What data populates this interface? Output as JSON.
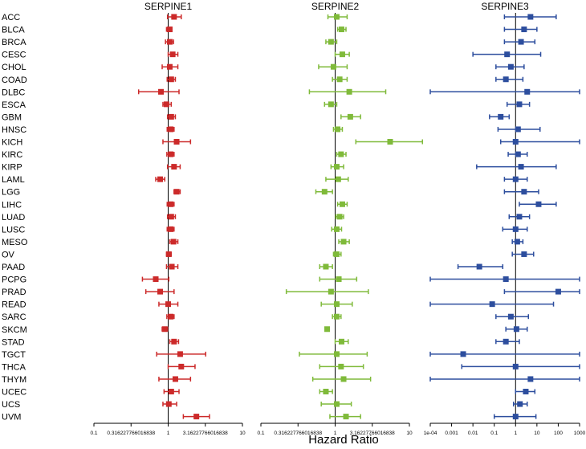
{
  "chart_data": {
    "type": "forest",
    "xlabel": "Hazard Ratio",
    "cancer_types": [
      "ACC",
      "BLCA",
      "BRCA",
      "CESC",
      "CHOL",
      "COAD",
      "DLBC",
      "ESCA",
      "GBM",
      "HNSC",
      "KICH",
      "KIRC",
      "KIRP",
      "LAML",
      "LGG",
      "LIHC",
      "LUAD",
      "LUSC",
      "MESO",
      "OV",
      "PAAD",
      "PCPG",
      "PRAD",
      "READ",
      "SARC",
      "SKCM",
      "STAD",
      "TGCT",
      "THCA",
      "THYM",
      "UCEC",
      "UCS",
      "UVM"
    ],
    "panels": [
      {
        "title": "SERPINE1",
        "color": "#cc2a2a",
        "scale": "log10",
        "xlim": [
          0.1,
          10
        ],
        "ticks": [
          0.1,
          0.316227766016838,
          1,
          3.16227766016838,
          10
        ],
        "tick_labels": [
          "0.1",
          "0.316227766016838",
          "1",
          "3.16227766016838",
          "10"
        ],
        "hr": [
          1.2,
          1.05,
          1.05,
          1.15,
          1.05,
          1.1,
          0.8,
          0.95,
          1.1,
          1.08,
          1.3,
          1.08,
          1.2,
          0.78,
          1.3,
          1.08,
          1.1,
          1.08,
          1.18,
          1.02,
          1.12,
          0.68,
          0.78,
          1.0,
          1.08,
          0.9,
          1.2,
          1.45,
          1.5,
          1.25,
          1.1,
          1.02,
          2.4
        ],
        "lower": [
          0.98,
          0.95,
          0.92,
          1.0,
          0.83,
          0.97,
          0.4,
          0.85,
          0.98,
          0.97,
          0.85,
          0.96,
          0.98,
          0.68,
          1.2,
          0.97,
          0.98,
          0.97,
          1.05,
          0.95,
          0.95,
          0.45,
          0.5,
          0.75,
          0.96,
          0.83,
          1.05,
          0.7,
          1.0,
          0.75,
          0.88,
          0.85,
          1.6
        ],
        "upper": [
          1.5,
          1.12,
          1.18,
          1.35,
          1.35,
          1.25,
          1.4,
          1.1,
          1.25,
          1.2,
          2.0,
          1.2,
          1.45,
          0.9,
          1.45,
          1.2,
          1.25,
          1.2,
          1.35,
          1.1,
          1.35,
          1.02,
          1.2,
          1.35,
          1.2,
          0.98,
          1.38,
          3.2,
          2.3,
          2.0,
          1.4,
          1.3,
          3.6
        ]
      },
      {
        "title": "SERPINE2",
        "color": "#7fba3a",
        "scale": "log10",
        "xlim": [
          0.1,
          10
        ],
        "ticks": [
          0.1,
          0.316227766016838,
          1,
          3.16227766016838,
          10
        ],
        "tick_labels": [
          "0.1",
          "0.316227766016838",
          "1",
          "3.16227766016838",
          "10"
        ],
        "hr": [
          1.05,
          1.22,
          0.88,
          1.25,
          0.95,
          1.15,
          1.55,
          0.88,
          1.6,
          1.08,
          5.5,
          1.2,
          1.05,
          1.1,
          0.72,
          1.25,
          1.15,
          1.05,
          1.3,
          1.05,
          0.75,
          1.12,
          0.88,
          1.05,
          1.05,
          0.78,
          1.22,
          1.05,
          1.2,
          1.3,
          0.75,
          1.05,
          1.4
        ],
        "lower": [
          0.8,
          1.08,
          0.75,
          1.0,
          0.6,
          0.92,
          0.45,
          0.72,
          1.2,
          0.95,
          1.9,
          1.05,
          0.88,
          0.75,
          0.55,
          1.08,
          1.02,
          0.9,
          1.12,
          0.95,
          0.62,
          0.62,
          0.22,
          0.65,
          0.92,
          0.74,
          1.0,
          0.33,
          0.62,
          0.5,
          0.62,
          0.65,
          0.85
        ],
        "upper": [
          1.45,
          1.4,
          1.05,
          1.55,
          1.45,
          1.45,
          4.8,
          1.05,
          2.2,
          1.25,
          15.0,
          1.4,
          1.3,
          1.5,
          0.92,
          1.45,
          1.3,
          1.22,
          1.55,
          1.2,
          0.92,
          1.95,
          2.8,
          1.7,
          1.2,
          0.82,
          1.5,
          2.7,
          2.4,
          3.0,
          0.92,
          1.65,
          2.2
        ]
      },
      {
        "title": "SERPINE3",
        "color": "#2d4e9e",
        "scale": "log10",
        "xlim": [
          0.0001,
          1000
        ],
        "ticks": [
          0.0001,
          0.001,
          0.01,
          0.1,
          1,
          10,
          100,
          1000
        ],
        "tick_labels": [
          "1e-04",
          "0.001",
          "0.01",
          "0.1",
          "1",
          "10",
          "100",
          "1000"
        ],
        "hr": [
          5.0,
          2.5,
          1.8,
          0.4,
          0.6,
          0.35,
          3.5,
          1.5,
          0.2,
          1.3,
          1.0,
          1.3,
          1.8,
          1.0,
          2.5,
          12.0,
          1.5,
          1.0,
          1.2,
          2.5,
          0.02,
          0.35,
          100,
          0.08,
          0.6,
          1.1,
          0.35,
          0.0035,
          1.0,
          5.0,
          3.0,
          1.6,
          1.0
        ],
        "lower": [
          0.3,
          0.3,
          0.3,
          0.01,
          0.12,
          0.12,
          0.0001,
          0.4,
          0.06,
          0.15,
          0.2,
          0.45,
          0.015,
          0.3,
          0.3,
          1.5,
          0.5,
          0.25,
          0.7,
          0.7,
          0.002,
          0.0001,
          0.3,
          0.0001,
          0.12,
          0.35,
          0.12,
          0.0001,
          0.003,
          0.0001,
          1.0,
          0.8,
          0.1
        ],
        "upper": [
          80,
          10,
          8,
          15,
          2.5,
          2.2,
          1000,
          4.5,
          0.5,
          14,
          1000,
          3.5,
          80,
          3.5,
          12,
          80,
          4.5,
          3.5,
          2.2,
          7,
          0.25,
          1000,
          1000,
          60,
          4,
          3.5,
          1.5,
          1000,
          1000,
          1000,
          8,
          3.5,
          9
        ]
      }
    ]
  }
}
